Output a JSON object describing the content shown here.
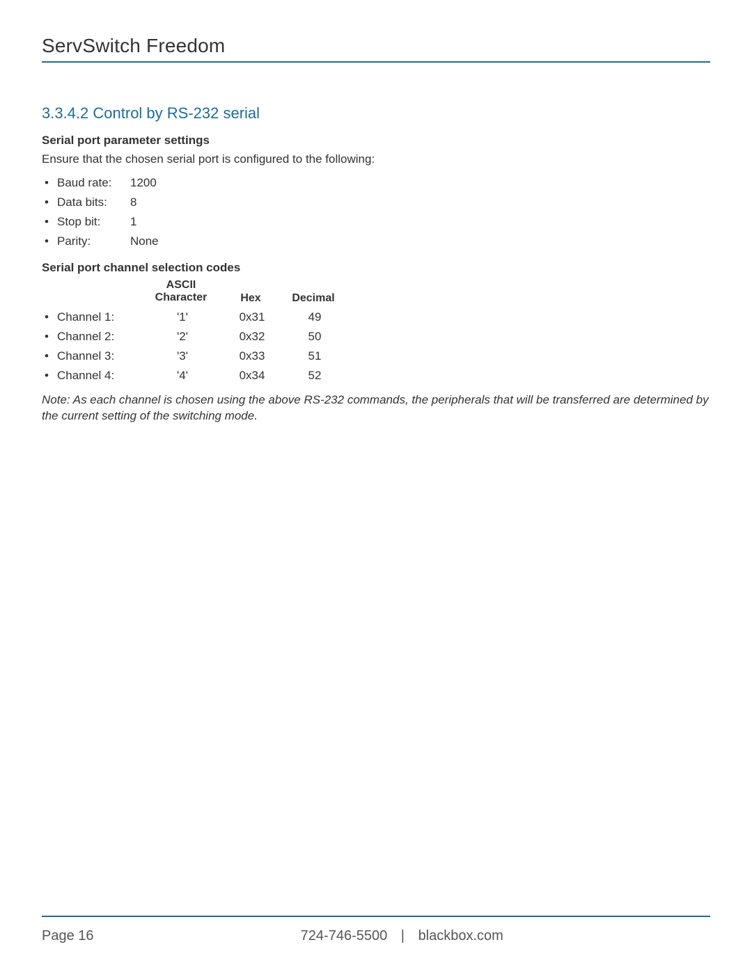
{
  "colors": {
    "accent": "#1a6d9c",
    "text": "#333333",
    "footer_text": "#555555",
    "background": "#ffffff"
  },
  "header": {
    "title": "ServSwitch Freedom"
  },
  "section": {
    "heading": "3.3.4.2 Control by RS-232 serial",
    "param_heading": "Serial port parameter settings",
    "param_intro": "Ensure that the chosen serial port is configured to the following:",
    "parameters": [
      {
        "label": "Baud rate:",
        "value": "1200"
      },
      {
        "label": "Data bits:",
        "value": "8"
      },
      {
        "label": "Stop bit:",
        "value": "1"
      },
      {
        "label": "Parity:",
        "value": "None"
      }
    ],
    "codes_heading": "Serial port channel selection codes",
    "codes_columns": {
      "ascii_line1": "ASCII",
      "ascii_line2": "Character",
      "hex": "Hex",
      "decimal": "Decimal"
    },
    "codes": [
      {
        "label": "Channel 1:",
        "ascii": "'1'",
        "hex": "0x31",
        "decimal": "49"
      },
      {
        "label": "Channel 2:",
        "ascii": "'2'",
        "hex": "0x32",
        "decimal": "50"
      },
      {
        "label": "Channel 3:",
        "ascii": "'3'",
        "hex": "0x33",
        "decimal": "51"
      },
      {
        "label": "Channel 4:",
        "ascii": "'4'",
        "hex": "0x34",
        "decimal": "52"
      }
    ],
    "note": "Note: As each channel is chosen using the above RS-232 commands, the peripherals that will be transferred are determined by the current setting of the switching mode."
  },
  "footer": {
    "page_label": "Page 16",
    "phone": "724-746-5500",
    "separator": "|",
    "site": "blackbox.com"
  }
}
